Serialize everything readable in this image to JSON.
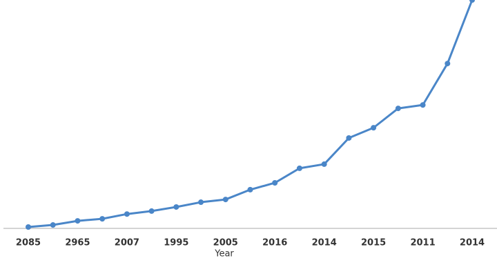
{
  "chart_data": {
    "type": "line",
    "x_label": "Year",
    "categories": [
      "2085",
      null,
      "2965",
      null,
      "2007",
      null,
      "1995",
      null,
      "2005",
      null,
      "2016",
      null,
      "2014",
      null,
      "2015",
      null,
      "2011",
      null,
      "2014"
    ],
    "values": [
      0.3,
      1.2,
      3,
      3.9,
      6,
      7.3,
      9.1,
      11.2,
      12.4,
      16.7,
      19.7,
      26.1,
      27.9,
      39.4,
      43.9,
      52.4,
      53.9,
      72.1,
      100
    ],
    "color": "#4a86c8",
    "ylim": [
      0,
      100
    ]
  }
}
